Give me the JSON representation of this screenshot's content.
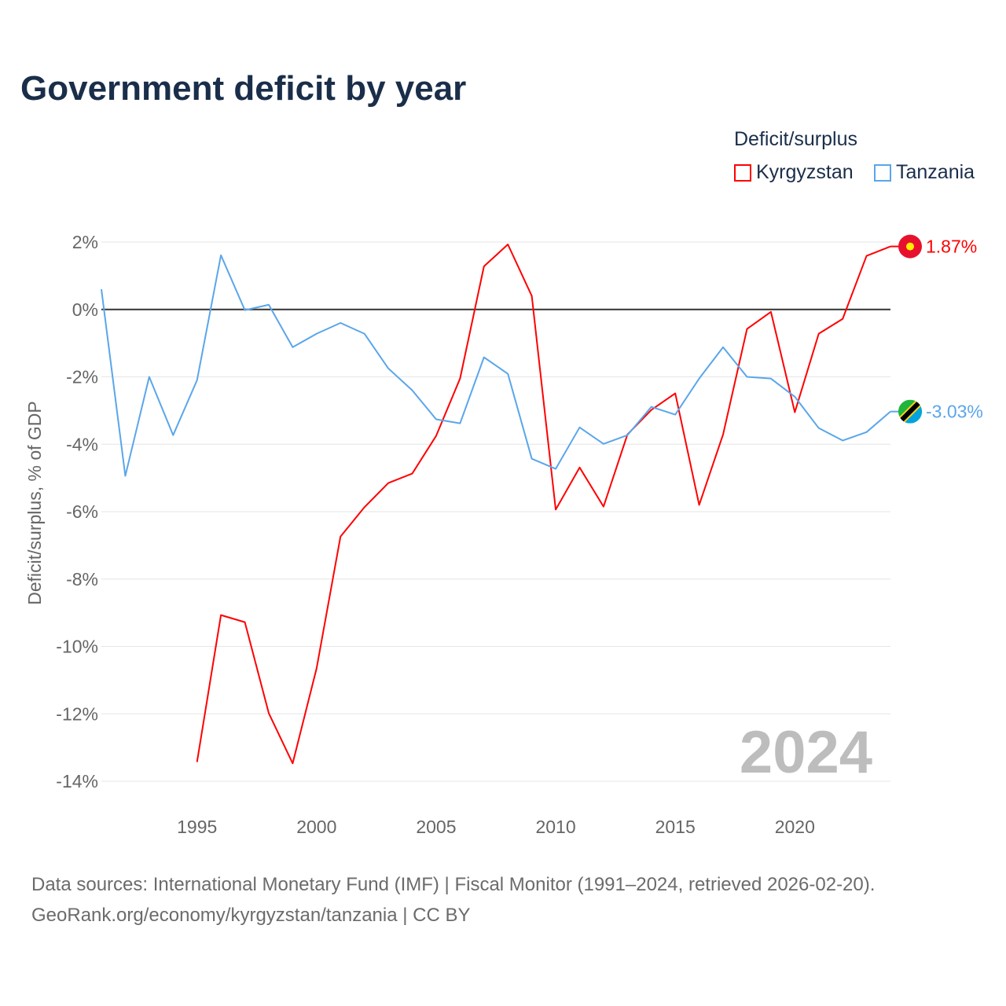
{
  "title": "Government deficit by year",
  "legend": {
    "title": "Deficit/surplus",
    "items": [
      {
        "label": "Kyrgyzstan",
        "color": "#ff0000"
      },
      {
        "label": "Tanzania",
        "color": "#5aa6ea"
      }
    ]
  },
  "watermark_year": "2024",
  "source": {
    "line1": "Data sources: International Monetary Fund (IMF) | Fiscal Monitor (1991–2024, retrieved 2026-02-20).",
    "line2": "GeoRank.org/economy/kyrgyzstan/tanzania | CC BY"
  },
  "chart_data": {
    "type": "line",
    "title": "Government deficit by year",
    "xlabel": "",
    "ylabel": "Deficit/surplus, % of GDP",
    "xlim": [
      1991,
      2024
    ],
    "ylim": [
      -14,
      2
    ],
    "xticks": [
      1995,
      2000,
      2005,
      2010,
      2015,
      2020
    ],
    "yticks": [
      2,
      0,
      -2,
      -4,
      -6,
      -8,
      -10,
      -12,
      -14
    ],
    "ytick_labels": [
      "2%",
      "0%",
      "-2%",
      "-4%",
      "-6%",
      "-8%",
      "-10%",
      "-12%",
      "-14%"
    ],
    "grid": true,
    "legend_position": "top-right",
    "series": [
      {
        "name": "Kyrgyzstan",
        "color": "#ff0000",
        "end_label": "1.87%",
        "x": [
          1995,
          1996,
          1997,
          1998,
          1999,
          2000,
          2001,
          2002,
          2003,
          2004,
          2005,
          2006,
          2007,
          2008,
          2009,
          2010,
          2011,
          2012,
          2013,
          2014,
          2015,
          2016,
          2017,
          2018,
          2019,
          2020,
          2021,
          2022,
          2023,
          2024
        ],
        "values": [
          -13.43,
          -9.07,
          -9.28,
          -11.98,
          -13.47,
          -10.65,
          -6.74,
          -5.87,
          -5.15,
          -4.87,
          -3.75,
          -2.05,
          1.28,
          1.93,
          0.4,
          -5.94,
          -4.69,
          -5.85,
          -3.71,
          -2.98,
          -2.49,
          -5.8,
          -3.71,
          -0.58,
          -0.07,
          -3.05,
          -0.72,
          -0.28,
          1.59,
          1.87
        ]
      },
      {
        "name": "Tanzania",
        "color": "#5aa6ea",
        "end_label": "-3.03%",
        "x": [
          1991,
          1992,
          1993,
          1994,
          1995,
          1996,
          1997,
          1998,
          1999,
          2000,
          2001,
          2002,
          2003,
          2004,
          2005,
          2006,
          2007,
          2008,
          2009,
          2010,
          2011,
          2012,
          2013,
          2014,
          2015,
          2016,
          2017,
          2018,
          2019,
          2020,
          2021,
          2022,
          2023,
          2024
        ],
        "values": [
          0.6,
          -4.94,
          -2.0,
          -3.73,
          -2.1,
          1.61,
          -0.02,
          0.14,
          -1.12,
          -0.72,
          -0.4,
          -0.72,
          -1.75,
          -2.4,
          -3.26,
          -3.38,
          -1.42,
          -1.91,
          -4.43,
          -4.73,
          -3.5,
          -3.99,
          -3.73,
          -2.89,
          -3.12,
          -2.05,
          -1.12,
          -2.0,
          -2.05,
          -2.59,
          -3.52,
          -3.89,
          -3.64,
          -3.03
        ]
      }
    ]
  }
}
